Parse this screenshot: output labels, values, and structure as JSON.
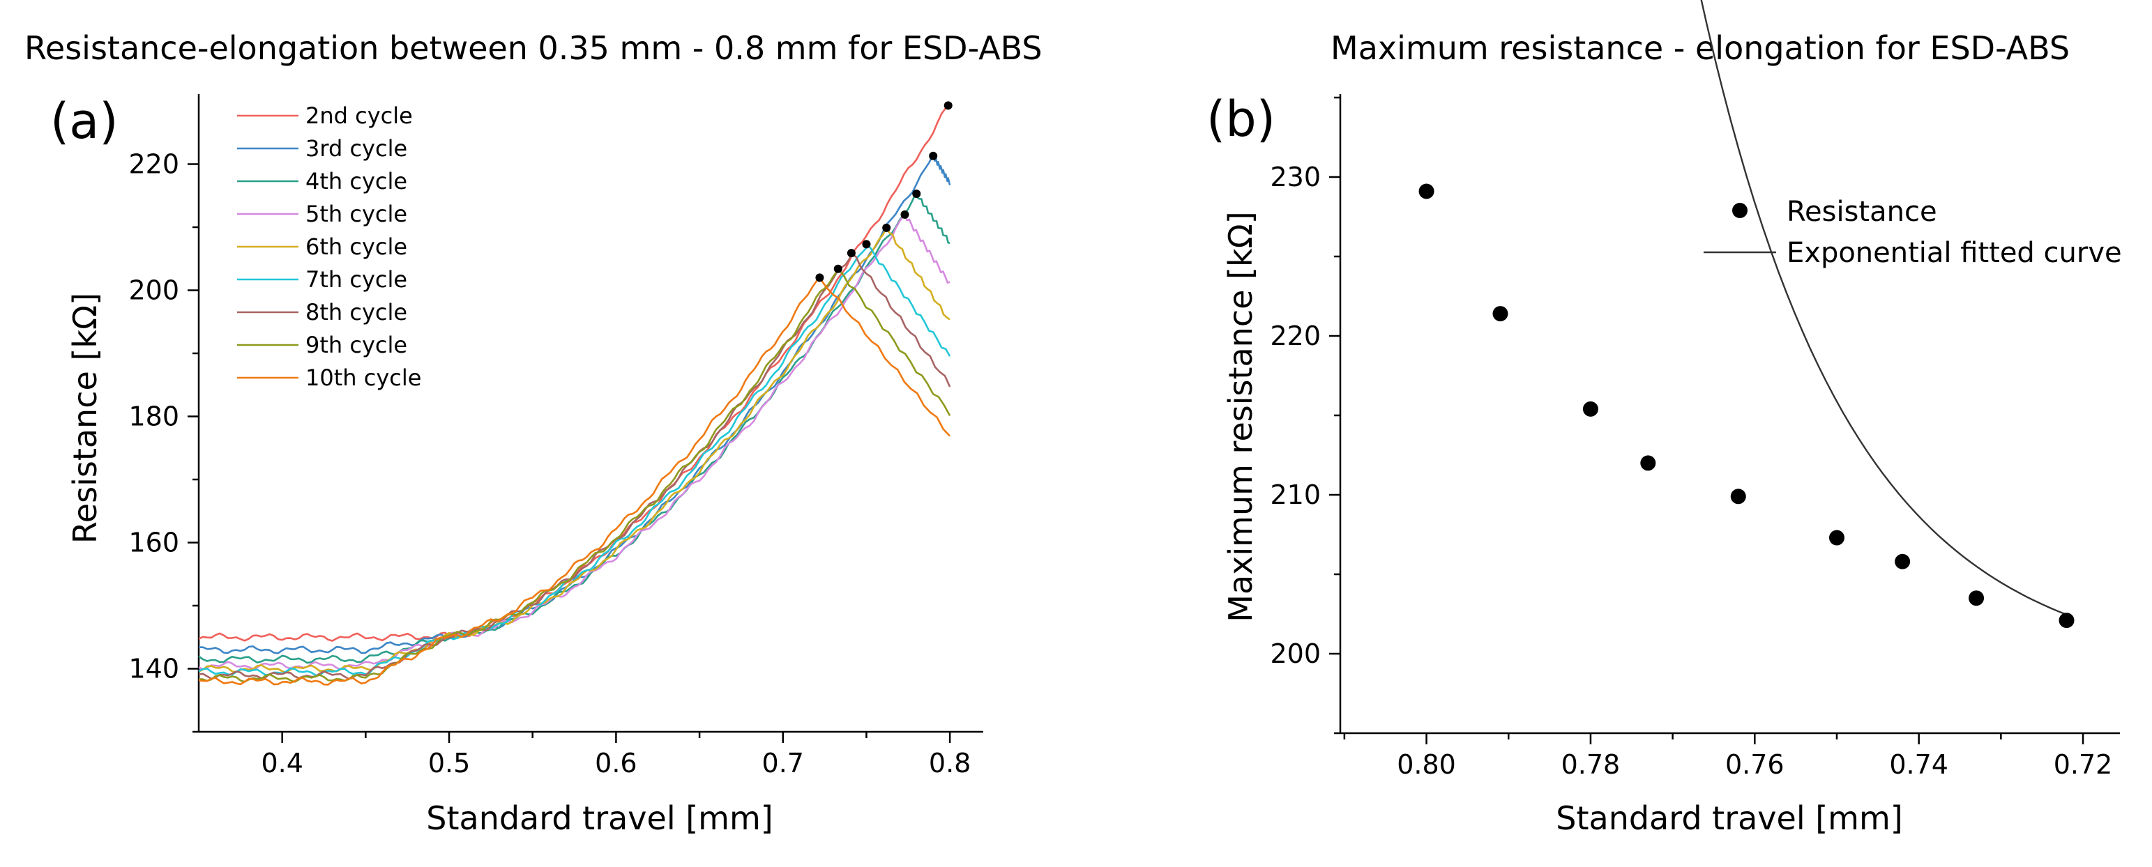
{
  "chart_data": [
    {
      "type": "line",
      "panel_label": "(a)",
      "title": "Resistance-elongation between 0.35 mm - 0.8 mm for ESD-ABS",
      "xlabel": "Standard travel [mm]",
      "ylabel": "Resistance [kΩ]",
      "xlim": [
        0.35,
        0.82
      ],
      "ylim": [
        130,
        230
      ],
      "xticks": [
        0.4,
        0.5,
        0.6,
        0.7,
        0.8
      ],
      "xtick_labels": [
        "0.4",
        "0.5",
        "0.6",
        "0.7",
        "0.8"
      ],
      "yticks": [
        140,
        160,
        180,
        200,
        220
      ],
      "ytick_labels": [
        "140",
        "160",
        "180",
        "200",
        "220"
      ],
      "legend_position": "top-left",
      "series": [
        {
          "name": "2nd cycle",
          "color": "#f0605a",
          "base": 145.0,
          "peak_x": 0.799,
          "peak_y": 229.3,
          "end_y": 229.3
        },
        {
          "name": "3rd cycle",
          "color": "#3d86c6",
          "base": 143.0,
          "peak_x": 0.79,
          "peak_y": 221.3,
          "end_y": 217.0
        },
        {
          "name": "4th cycle",
          "color": "#2aa08a",
          "base": 141.5,
          "peak_x": 0.78,
          "peak_y": 215.3,
          "end_y": 207.5
        },
        {
          "name": "5th cycle",
          "color": "#d68ae0",
          "base": 140.5,
          "peak_x": 0.773,
          "peak_y": 212.0,
          "end_y": 201.0
        },
        {
          "name": "6th cycle",
          "color": "#d4ae1f",
          "base": 140.0,
          "peak_x": 0.762,
          "peak_y": 209.9,
          "end_y": 195.0
        },
        {
          "name": "7th cycle",
          "color": "#22c7d8",
          "base": 139.5,
          "peak_x": 0.75,
          "peak_y": 207.3,
          "end_y": 189.5
        },
        {
          "name": "8th cycle",
          "color": "#a86464",
          "base": 139.0,
          "peak_x": 0.741,
          "peak_y": 205.9,
          "end_y": 185.0
        },
        {
          "name": "9th cycle",
          "color": "#8e9a1c",
          "base": 138.5,
          "peak_x": 0.733,
          "peak_y": 203.4,
          "end_y": 180.5
        },
        {
          "name": "10th cycle",
          "color": "#f07a12",
          "base": 138.0,
          "peak_x": 0.722,
          "peak_y": 202.0,
          "end_y": 177.0
        }
      ],
      "peak_markers": {
        "color": "#000000"
      }
    },
    {
      "type": "scatter",
      "panel_label": "(b)",
      "title": "Maximum resistance - elongation for ESD-ABS",
      "xlabel": "Standard travel [mm]",
      "ylabel": "Maximum resistance [kΩ]",
      "xlim": [
        0.8105,
        0.7155
      ],
      "ylim": [
        195,
        235
      ],
      "x_reversed": true,
      "xticks": [
        0.8,
        0.78,
        0.76,
        0.74,
        0.72
      ],
      "xtick_labels": [
        "0.80",
        "0.78",
        "0.76",
        "0.74",
        "0.72"
      ],
      "yticks": [
        200,
        210,
        220,
        230
      ],
      "ytick_labels": [
        "200",
        "210",
        "220",
        "230"
      ],
      "legend_position": "top-right",
      "series": [
        {
          "name": "Resistance",
          "color": "#000000",
          "x": [
            0.8,
            0.791,
            0.78,
            0.773,
            0.762,
            0.75,
            0.742,
            0.733,
            0.722
          ],
          "y": [
            229.1,
            221.4,
            215.4,
            212.0,
            209.9,
            207.3,
            205.8,
            203.5,
            202.1
          ]
        },
        {
          "name": "Exponential fitted curve",
          "color": "#333333",
          "fit": {
            "form": "y0 + A*exp(k*(x-0.722))",
            "y0": 198.8,
            "A": 3.66,
            "k": 55.0,
            "x_range": [
              0.8,
              0.722
            ]
          }
        }
      ]
    }
  ]
}
